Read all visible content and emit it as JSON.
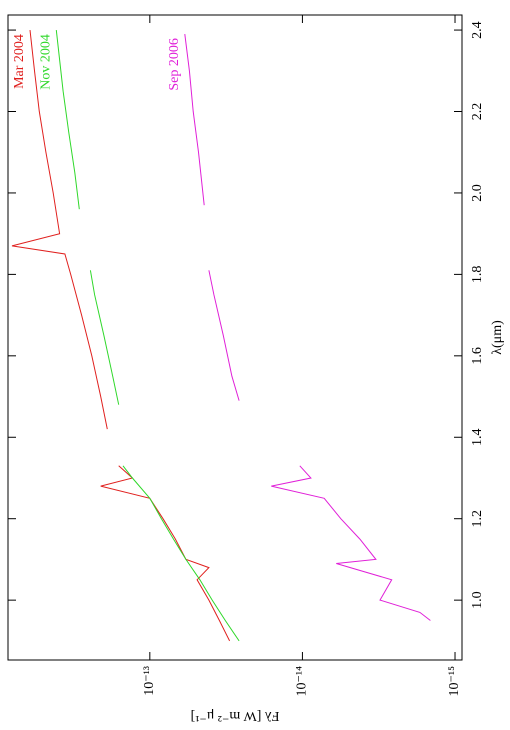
{
  "chart_data": {
    "type": "line",
    "x_label": "λ(μm)",
    "y_label": "Fλ [W m⁻² μ⁻¹]",
    "xlim": [
      0.853,
      2.437
    ],
    "ylim": [
      9e-16,
      8.5e-13
    ],
    "log_y": true,
    "xticks": [
      {
        "value": 1.0,
        "label": "1.0"
      },
      1.2,
      1.4,
      1.6,
      1.8,
      {
        "value": 2.0,
        "label": "2.0"
      },
      2.2,
      2.4
    ],
    "yticks": [
      {
        "value": 1e-15,
        "label": "10⁻¹⁵"
      },
      {
        "value": 1e-14,
        "label": "10⁻¹⁴"
      },
      {
        "value": 1e-13,
        "label": "10⁻¹³"
      }
    ],
    "series": [
      {
        "name": "Mar 2004",
        "color": "#e0201e",
        "x": [
          0.9,
          0.95,
          1.0,
          1.05,
          1.08,
          1.1,
          1.15,
          1.2,
          1.25,
          1.28,
          1.3,
          1.33,
          1.37,
          1.42,
          1.5,
          1.6,
          1.7,
          1.8,
          1.85,
          1.87,
          1.9,
          2.0,
          2.1,
          2.2,
          2.3,
          2.4
        ],
        "values": [
          3e-14,
          3.5e-14,
          4.1e-14,
          4.9e-14,
          4.1e-14,
          5.8e-14,
          6.8e-14,
          8.2e-14,
          1e-13,
          2.1e-13,
          1.3e-13,
          1.6e-13,
          null,
          1.9e-13,
          2.1e-13,
          2.4e-13,
          2.8e-13,
          3.3e-13,
          3.6e-13,
          8e-13,
          3.9e-13,
          4.3e-13,
          4.8e-13,
          5.3e-13,
          5.7e-13,
          6.1e-13
        ]
      },
      {
        "name": "Nov 2004",
        "color": "#2fd82a",
        "x": [
          0.9,
          0.95,
          1.0,
          1.05,
          1.1,
          1.15,
          1.2,
          1.25,
          1.3,
          1.33,
          1.4,
          1.48,
          1.55,
          1.65,
          1.75,
          1.81,
          1.88,
          1.96,
          2.05,
          2.15,
          2.25,
          2.4
        ],
        "values": [
          2.6e-14,
          3.2e-14,
          3.9e-14,
          4.7e-14,
          5.8e-14,
          7e-14,
          8.4e-14,
          1e-13,
          1.3e-13,
          1.5e-13,
          null,
          1.6e-13,
          1.75e-13,
          2e-13,
          2.3e-13,
          2.45e-13,
          null,
          2.9e-13,
          3.1e-13,
          3.4e-13,
          3.7e-13,
          4.1e-13
        ]
      },
      {
        "name": "Sep 2006",
        "color": "#e020d8",
        "x": [
          0.95,
          0.97,
          1.0,
          1.05,
          1.09,
          1.1,
          1.15,
          1.2,
          1.25,
          1.28,
          1.3,
          1.33,
          1.4,
          1.49,
          1.55,
          1.65,
          1.75,
          1.81,
          1.9,
          1.97,
          2.1,
          2.2,
          2.3,
          2.39
        ],
        "values": [
          1.45e-15,
          1.7e-15,
          3.1e-15,
          2.6e-15,
          6e-15,
          3.3e-15,
          4.2e-15,
          5.6e-15,
          7.2e-15,
          1.6e-14,
          8.8e-15,
          1.04e-14,
          null,
          2.6e-14,
          2.9e-14,
          3.3e-14,
          3.8e-14,
          4.1e-14,
          null,
          4.4e-14,
          4.8e-14,
          5.2e-14,
          5.5e-14,
          5.9e-14
        ]
      }
    ]
  }
}
